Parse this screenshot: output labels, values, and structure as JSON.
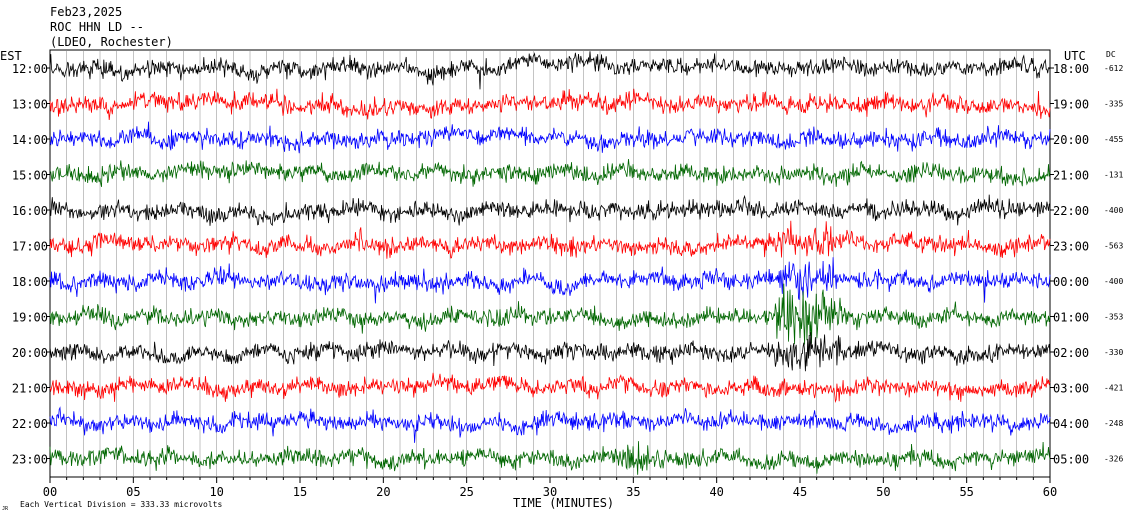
{
  "header": {
    "date": "Feb23,2025",
    "station": "ROC HHN LD --",
    "network": "(LDEO, Rochester)"
  },
  "left_axis_label": "EST",
  "right_axis_label": "UTC",
  "dc_label": "DC",
  "footer": {
    "scale_note": "Each Vertical Division =  333.33 microvolts",
    "scale_prefix": "JR"
  },
  "chart_data": {
    "type": "line",
    "xlabel": "TIME (MINUTES)",
    "xlim": [
      0,
      60
    ],
    "x_ticks": [
      "00",
      "05",
      "10",
      "15",
      "20",
      "25",
      "30",
      "35",
      "40",
      "45",
      "50",
      "55",
      "60"
    ],
    "trace_colors": [
      "#000000",
      "#ff0000",
      "#0000ff",
      "#006600"
    ],
    "rows": [
      {
        "est": "12:00",
        "utc": "18:00",
        "dc": "-612"
      },
      {
        "est": "13:00",
        "utc": "19:00",
        "dc": "-335"
      },
      {
        "est": "14:00",
        "utc": "20:00",
        "dc": "-455"
      },
      {
        "est": "15:00",
        "utc": "21:00",
        "dc": "-131"
      },
      {
        "est": "16:00",
        "utc": "22:00",
        "dc": "-400"
      },
      {
        "est": "17:00",
        "utc": "23:00",
        "dc": "-563"
      },
      {
        "est": "18:00",
        "utc": "00:00",
        "dc": "-400"
      },
      {
        "est": "19:00",
        "utc": "01:00",
        "dc": "-353"
      },
      {
        "est": "20:00",
        "utc": "02:00",
        "dc": "-330"
      },
      {
        "est": "21:00",
        "utc": "03:00",
        "dc": "-421"
      },
      {
        "est": "22:00",
        "utc": "04:00",
        "dc": "-248"
      },
      {
        "est": "23:00",
        "utc": "05:00",
        "dc": "-326"
      }
    ]
  }
}
